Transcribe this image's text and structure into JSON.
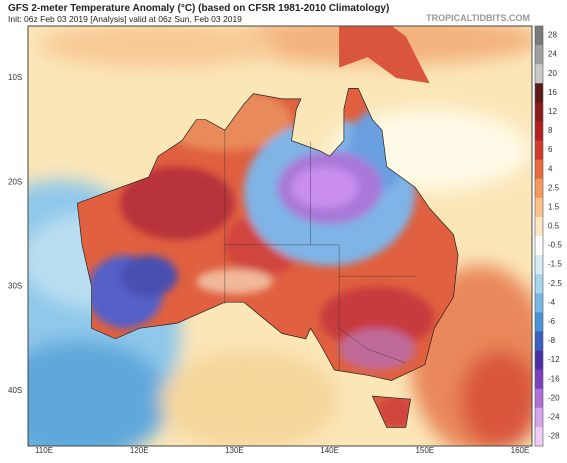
{
  "header": {
    "title": "GFS 2-meter Temperature Anomaly (°C) (based on CFSR 1981-2010 Climatology)",
    "subtitle": "Init: 06z Feb 03 2019   [Analysis]   valid at 06z Sun, Feb 03 2019",
    "brand": "TROPICALTIDBITS.COM"
  },
  "map": {
    "latitude_labels": [
      "10S",
      "20S",
      "30S",
      "40S"
    ],
    "longitude_labels": [
      "110E",
      "120E",
      "130E",
      "140E",
      "150E",
      "160E"
    ]
  },
  "colorbar": {
    "labels": [
      "28",
      "24",
      "20",
      "16",
      "12",
      "8",
      "6",
      "4",
      "2.5",
      "1.5",
      "0.5",
      "-0.5",
      "-1.5",
      "-2.5",
      "-4",
      "-6",
      "-8",
      "-12",
      "-16",
      "-20",
      "-24",
      "-28"
    ]
  }
}
